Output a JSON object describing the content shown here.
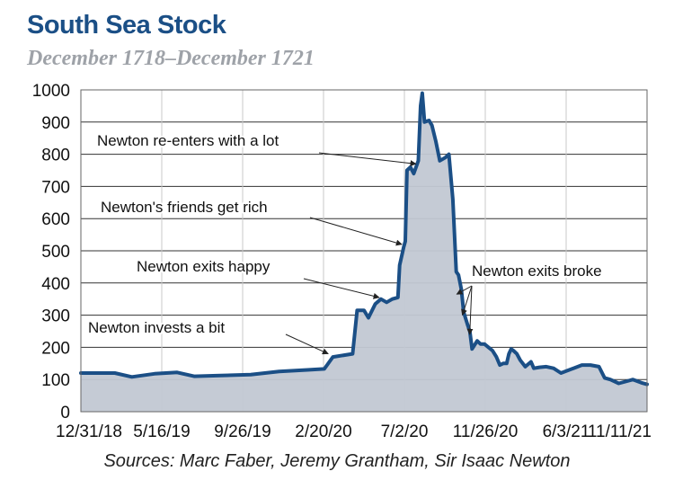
{
  "chart_data": {
    "type": "area",
    "title": "South Sea Stock",
    "subtitle": "December 1718–December 1721",
    "source": "Sources: Marc Faber, Jeremy Grantham, Sir Isaac Newton",
    "xlabel": "",
    "ylabel": "",
    "ylim": [
      0,
      1000
    ],
    "yticks": [
      0,
      100,
      200,
      300,
      400,
      500,
      600,
      700,
      800,
      900,
      1000
    ],
    "xticks": [
      "12/31/18",
      "5/16/19",
      "9/26/19",
      "2/20/20",
      "7/2/20",
      "11/26/20",
      "6/3/21",
      "11/11/21"
    ],
    "grid": true,
    "series": [
      {
        "points": [
          [
            0.0,
            120
          ],
          [
            0.06,
            120
          ],
          [
            0.09,
            108
          ],
          [
            0.13,
            118
          ],
          [
            0.17,
            122
          ],
          [
            0.2,
            110
          ],
          [
            0.24,
            112
          ],
          [
            0.3,
            115
          ],
          [
            0.35,
            125
          ],
          [
            0.4,
            130
          ],
          [
            0.43,
            133
          ],
          [
            0.445,
            170
          ],
          [
            0.48,
            180
          ],
          [
            0.488,
            315
          ],
          [
            0.5,
            315
          ],
          [
            0.508,
            292
          ],
          [
            0.52,
            335
          ],
          [
            0.53,
            350
          ],
          [
            0.54,
            340
          ],
          [
            0.55,
            350
          ],
          [
            0.56,
            355
          ],
          [
            0.563,
            455
          ],
          [
            0.57,
            510
          ],
          [
            0.573,
            530
          ],
          [
            0.576,
            750
          ],
          [
            0.582,
            760
          ],
          [
            0.588,
            740
          ],
          [
            0.596,
            780
          ],
          [
            0.6,
            950
          ],
          [
            0.603,
            990
          ],
          [
            0.607,
            900
          ],
          [
            0.615,
            905
          ],
          [
            0.62,
            890
          ],
          [
            0.627,
            840
          ],
          [
            0.634,
            780
          ],
          [
            0.644,
            790
          ],
          [
            0.65,
            800
          ],
          [
            0.657,
            660
          ],
          [
            0.663,
            435
          ],
          [
            0.667,
            425
          ],
          [
            0.672,
            380
          ],
          [
            0.676,
            310
          ],
          [
            0.683,
            270
          ],
          [
            0.687,
            250
          ],
          [
            0.691,
            195
          ],
          [
            0.7,
            220
          ],
          [
            0.706,
            210
          ],
          [
            0.713,
            210
          ],
          [
            0.72,
            200
          ],
          [
            0.727,
            190
          ],
          [
            0.734,
            170
          ],
          [
            0.74,
            145
          ],
          [
            0.746,
            150
          ],
          [
            0.752,
            150
          ],
          [
            0.756,
            180
          ],
          [
            0.76,
            195
          ],
          [
            0.764,
            190
          ],
          [
            0.77,
            180
          ],
          [
            0.776,
            160
          ],
          [
            0.785,
            140
          ],
          [
            0.795,
            155
          ],
          [
            0.8,
            135
          ],
          [
            0.81,
            138
          ],
          [
            0.822,
            140
          ],
          [
            0.835,
            135
          ],
          [
            0.848,
            120
          ],
          [
            0.87,
            135
          ],
          [
            0.885,
            145
          ],
          [
            0.9,
            145
          ],
          [
            0.915,
            140
          ],
          [
            0.925,
            105
          ],
          [
            0.935,
            100
          ],
          [
            0.95,
            88
          ],
          [
            0.965,
            95
          ],
          [
            0.975,
            100
          ],
          [
            0.99,
            90
          ],
          [
            1.0,
            85
          ]
        ]
      }
    ],
    "annotations": [
      {
        "text": "Newton re-enters with a lot",
        "target": [
          0.595,
          770
        ]
      },
      {
        "text": "Newton's friends get rich",
        "target": [
          0.57,
          520
        ]
      },
      {
        "text": "Newton exits happy",
        "target": [
          0.53,
          355
        ]
      },
      {
        "text": "Newton invests a bit",
        "target": [
          0.44,
          180
        ]
      },
      {
        "text": "Newton exits broke",
        "targets": [
          [
            0.667,
            365
          ],
          [
            0.677,
            300
          ],
          [
            0.69,
            240
          ]
        ]
      }
    ],
    "colors": {
      "title": "#1b4f86",
      "subtitle": "#9ea2a8",
      "line": "#1b4f86",
      "fill": "#c2c8d3",
      "grid": "#333333",
      "plot_border": "#666666"
    }
  }
}
